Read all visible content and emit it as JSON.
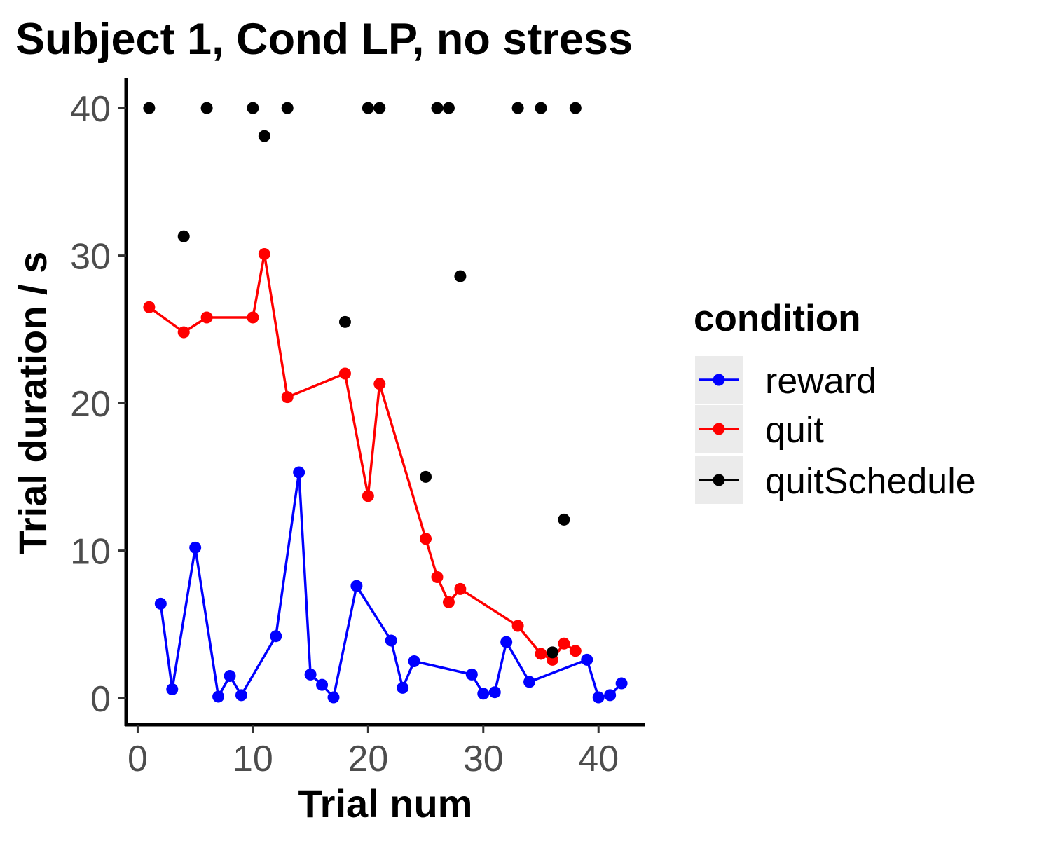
{
  "chart_data": {
    "type": "line",
    "title": "Subject 1, Cond LP, no stress",
    "xlabel": "Trial num",
    "ylabel": "Trial duration / s",
    "xlim": [
      -1,
      44
    ],
    "ylim": [
      -1.8,
      42
    ],
    "x_ticks": [
      0,
      10,
      20,
      30,
      40
    ],
    "y_ticks": [
      0,
      10,
      20,
      30,
      40
    ],
    "grid": false,
    "legend": {
      "title": "condition",
      "placement": "right"
    },
    "series": [
      {
        "name": "reward",
        "color": "#0000ff",
        "line": true,
        "points": [
          [
            2,
            6.4
          ],
          [
            3,
            0.6
          ],
          [
            5,
            10.2
          ],
          [
            7,
            0.1
          ],
          [
            8,
            1.5
          ],
          [
            9,
            0.2
          ],
          [
            12,
            4.2
          ],
          [
            14,
            15.3
          ],
          [
            15,
            1.6
          ],
          [
            16,
            0.9
          ],
          [
            17,
            0.05
          ],
          [
            19,
            7.6
          ],
          [
            22,
            3.9
          ],
          [
            23,
            0.7
          ],
          [
            24,
            2.5
          ],
          [
            29,
            1.6
          ],
          [
            30,
            0.3
          ],
          [
            31,
            0.4
          ],
          [
            32,
            3.8
          ],
          [
            34,
            1.1
          ],
          [
            39,
            2.6
          ],
          [
            40,
            0.05
          ],
          [
            41,
            0.2
          ],
          [
            42,
            1.0
          ]
        ]
      },
      {
        "name": "quit",
        "color": "#ff0000",
        "line": true,
        "points": [
          [
            1,
            26.5
          ],
          [
            4,
            24.8
          ],
          [
            6,
            25.8
          ],
          [
            10,
            25.8
          ],
          [
            11,
            30.1
          ],
          [
            13,
            20.4
          ],
          [
            18,
            22.0
          ],
          [
            20,
            13.7
          ],
          [
            21,
            21.3
          ],
          [
            25,
            10.8
          ],
          [
            26,
            8.2
          ],
          [
            27,
            6.5
          ],
          [
            28,
            7.4
          ],
          [
            33,
            4.9
          ],
          [
            35,
            3.0
          ],
          [
            36,
            2.6
          ],
          [
            37,
            3.7
          ],
          [
            38,
            3.2
          ]
        ]
      },
      {
        "name": "quitSchedule",
        "color": "#000000",
        "line": false,
        "points": [
          [
            1,
            40
          ],
          [
            4,
            31.3
          ],
          [
            6,
            40
          ],
          [
            10,
            40
          ],
          [
            11,
            38.1
          ],
          [
            13,
            40
          ],
          [
            18,
            25.5
          ],
          [
            20,
            40
          ],
          [
            21,
            40
          ],
          [
            25,
            15.0
          ],
          [
            26,
            40
          ],
          [
            27,
            40
          ],
          [
            28,
            28.6
          ],
          [
            33,
            40
          ],
          [
            35,
            40
          ],
          [
            36,
            3.1
          ],
          [
            37,
            12.1
          ],
          [
            38,
            40
          ]
        ]
      }
    ]
  }
}
